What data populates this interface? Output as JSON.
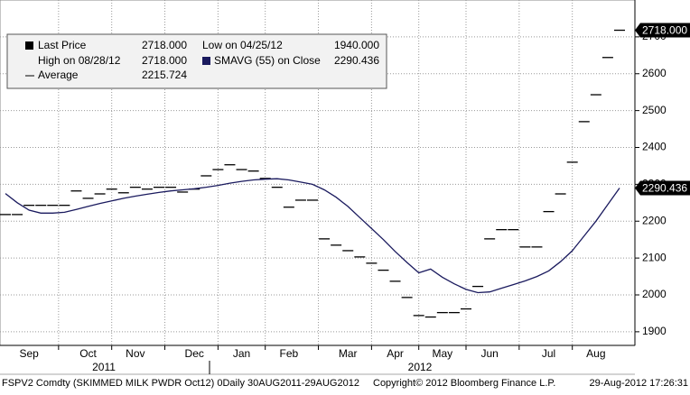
{
  "chart_data": {
    "type": "line",
    "categories": [
      null,
      null,
      "Sep",
      null,
      null,
      null,
      null,
      "Oct",
      null,
      null,
      null,
      "Nov",
      null,
      null,
      null,
      null,
      "Dec",
      null,
      null,
      null,
      "Jan",
      null,
      null,
      null,
      "Feb",
      null,
      null,
      null,
      null,
      "Mar",
      null,
      null,
      null,
      "Apr",
      null,
      null,
      null,
      "May",
      null,
      null,
      null,
      "Jun",
      null,
      null,
      null,
      null,
      "Jul",
      null,
      null,
      null,
      "Aug",
      null,
      null
    ],
    "series": [
      {
        "name": "Last Price",
        "color": "#000000",
        "style": "step",
        "values": [
          2218,
          2218,
          2243,
          2243,
          2243,
          2243,
          2282,
          2262,
          2274,
          2287,
          2277,
          2292,
          2287,
          2292,
          2292,
          2279,
          2287,
          2323,
          2340,
          2353,
          2340,
          2336,
          2316,
          2292,
          2238,
          2257,
          2257,
          2152,
          2135,
          2120,
          2103,
          2086,
          2067,
          2037,
          1993,
          1944,
          1940,
          1952,
          1952,
          1962,
          2023,
          2152,
          2177,
          2177,
          2130,
          2130,
          2226,
          2274,
          2360,
          2470,
          2543,
          2644,
          2718
        ]
      },
      {
        "name": "SMAVG (55) on Close",
        "color": "#1a1a5e",
        "style": "line",
        "values": [
          2275,
          2250,
          2230,
          2222,
          2222,
          2224,
          2232,
          2240,
          2248,
          2255,
          2262,
          2268,
          2273,
          2278,
          2282,
          2285,
          2288,
          2292,
          2297,
          2303,
          2308,
          2312,
          2314,
          2315,
          2312,
          2306,
          2300,
          2285,
          2265,
          2240,
          2210,
          2180,
          2150,
          2118,
          2088,
          2060,
          2070,
          2048,
          2030,
          2015,
          2006,
          2008,
          2018,
          2028,
          2038,
          2050,
          2065,
          2090,
          2120,
          2160,
          2200,
          2245,
          2290
        ]
      }
    ],
    "legend": [
      {
        "name": "Last Price",
        "label": "2718.000"
      },
      {
        "name": "Low on 04/25/12",
        "label": "1940.000"
      },
      {
        "name": "High on 08/28/12",
        "label": "2718.000"
      },
      {
        "name": "SMAVG (55) on Close",
        "label": "2290.436"
      },
      {
        "name": "Average",
        "label": "2215.724"
      }
    ],
    "callouts": [
      "2718.000",
      "2290.436"
    ],
    "years": [
      "2011",
      "2012"
    ],
    "ylim": [
      1863,
      2800
    ],
    "yticks": [
      1900,
      2000,
      2100,
      2200,
      2300,
      2400,
      2500,
      2600,
      2700
    ],
    "grid": true,
    "footer": [
      "FSPV2 Comdty (SKIMMED MILK PWDR Oct12) 0Daily 30AUG2011-29AUG2012",
      "Copyright© 2012 Bloomberg Finance L.P.",
      "29-Aug-2012 17:26:31"
    ]
  }
}
